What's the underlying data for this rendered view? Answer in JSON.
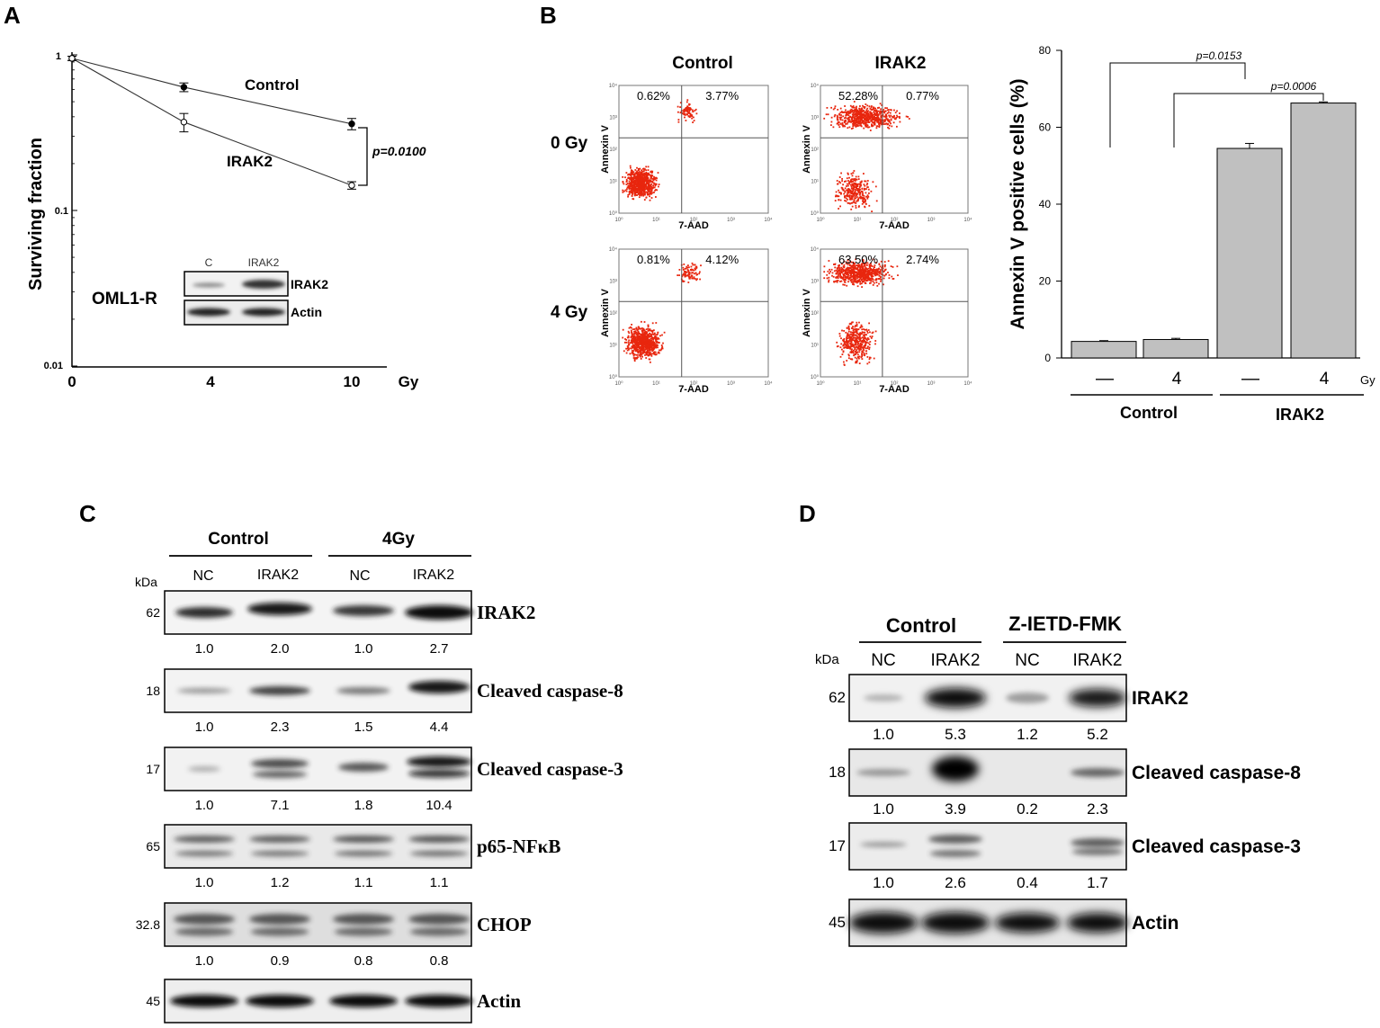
{
  "panels": [
    "A",
    "B",
    "C",
    "D"
  ],
  "panel_a": {
    "ylabel": "Surviving fraction",
    "y_ticks": [
      "1",
      "0.1",
      "0.01"
    ],
    "x_ticks": [
      "0",
      "4",
      "10"
    ],
    "x_unit": "Gy",
    "pvalue": "p=0.0100",
    "inset": {
      "cell_line": "OML1-R",
      "lanes": [
        "C",
        "IRAK2"
      ],
      "bands": [
        "IRAK2",
        "Actin"
      ]
    }
  },
  "panel_b_flow": {
    "columns": [
      "Control",
      "IRAK2"
    ],
    "rows": [
      "0 Gy",
      "4 Gy"
    ],
    "ylabel": "Annexin V",
    "xlabel": "7-AAD",
    "quadrants": [
      {
        "ul": "0.62%",
        "ur": "3.77%"
      },
      {
        "ul": "52.28%",
        "ur": "0.77%"
      },
      {
        "ul": "0.81%",
        "ur": "4.12%"
      },
      {
        "ul": "63.50%",
        "ur": "2.74%"
      }
    ]
  },
  "panel_b_bar": {
    "ylabel": "Annexin V positive cells (%)",
    "y_ticks": [
      "0",
      "20",
      "40",
      "60",
      "80"
    ],
    "x_labels": [
      "—",
      "4",
      "—",
      "4"
    ],
    "x_unit": "Gy",
    "groups": [
      "Control",
      "IRAK2"
    ],
    "pvalues": [
      "p=0.0153",
      "p=0.0006"
    ]
  },
  "chart_data": [
    {
      "type": "line",
      "xlabel": "",
      "ylabel": "Surviving fraction",
      "yscale": "log",
      "ylim": [
        0.01,
        1
      ],
      "x": [
        0,
        4,
        10
      ],
      "series": [
        {
          "name": "Control",
          "values": [
            0.95,
            0.62,
            0.36
          ]
        },
        {
          "name": "IRAK2",
          "values": [
            0.95,
            0.37,
            0.145
          ]
        }
      ]
    },
    {
      "type": "bar",
      "ylabel": "Annexin V positive cells (%)",
      "ylim": [
        0,
        80
      ],
      "categories": [
        "Control —",
        "Control 4",
        "IRAK2 —",
        "IRAK2 4"
      ],
      "values": [
        4.3,
        4.8,
        54.5,
        66.3
      ],
      "errors": [
        0.2,
        0.3,
        1.3,
        0.3
      ]
    }
  ],
  "panel_c": {
    "groups": [
      "Control",
      "4Gy"
    ],
    "lanes": [
      "NC",
      "IRAK2",
      "NC",
      "IRAK2"
    ],
    "kda_label": "kDa",
    "blots": [
      {
        "kda": "62",
        "name": "IRAK2",
        "quant": [
          "1.0",
          "2.0",
          "1.0",
          "2.7"
        ]
      },
      {
        "kda": "18",
        "name": "Cleaved caspase-8",
        "quant": [
          "1.0",
          "2.3",
          "1.5",
          "4.4"
        ]
      },
      {
        "kda": "17",
        "name": "Cleaved caspase-3",
        "quant": [
          "1.0",
          "7.1",
          "1.8",
          "10.4"
        ]
      },
      {
        "kda": "65",
        "name": "p65-NFκB",
        "quant": [
          "1.0",
          "1.2",
          "1.1",
          "1.1"
        ]
      },
      {
        "kda": "32.8",
        "name": "CHOP",
        "quant": [
          "1.0",
          "0.9",
          "0.8",
          "0.8"
        ]
      },
      {
        "kda": "45",
        "name": "Actin",
        "quant": []
      }
    ]
  },
  "panel_d": {
    "groups": [
      "Control",
      "Z-IETD-FMK"
    ],
    "lanes": [
      "NC",
      "IRAK2",
      "NC",
      "IRAK2"
    ],
    "kda_label": "kDa",
    "blots": [
      {
        "kda": "62",
        "name": "IRAK2",
        "quant": [
          "1.0",
          "5.3",
          "1.2",
          "5.2"
        ]
      },
      {
        "kda": "18",
        "name": "Cleaved caspase-8",
        "quant": [
          "1.0",
          "3.9",
          "0.2",
          "2.3"
        ]
      },
      {
        "kda": "17",
        "name": "Cleaved caspase-3",
        "quant": [
          "1.0",
          "2.6",
          "0.4",
          "1.7"
        ]
      },
      {
        "kda": "45",
        "name": "Actin",
        "quant": []
      }
    ]
  }
}
